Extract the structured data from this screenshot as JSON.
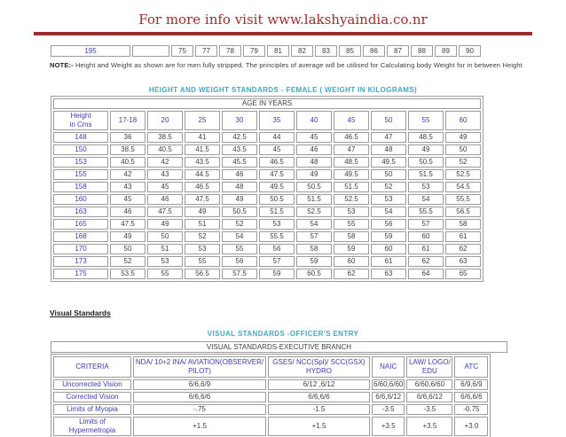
{
  "header": {
    "title": "For more info visit www.lakshyaindia.co.nr"
  },
  "weight_strip": {
    "first_cell": "195",
    "empty_cell": "",
    "values": [
      "75",
      "77",
      "78",
      "79",
      "81",
      "82",
      "83",
      "85",
      "86",
      "87",
      "88",
      "89",
      "90"
    ]
  },
  "note": {
    "label": "NOTE:-",
    "text": " Height and Weight as shown are for men fully stripped. The principles of average will be utilised for Calculating body Weight for in between Height"
  },
  "female_table": {
    "title": "HEIGHT AND WEIGHT STANDARDS - FEMALE ( WEIGHT IN KILOGRAMS)",
    "age_header": "AGE IN YEARS",
    "height_col_lines": [
      "Height",
      "in Cms"
    ],
    "age_columns": [
      "17-18",
      "20",
      "25",
      "30",
      "35",
      "40",
      "45",
      "50",
      "55",
      "60"
    ],
    "rows": [
      {
        "height": "148",
        "weights": [
          "36",
          "38.5",
          "41",
          "42.5",
          "44",
          "45",
          "46.5",
          "47",
          "48.5",
          "49"
        ]
      },
      {
        "height": "150",
        "weights": [
          "38.5",
          "40.5",
          "41.5",
          "43.5",
          "45",
          "46",
          "47",
          "48",
          "49",
          "50"
        ]
      },
      {
        "height": "153",
        "weights": [
          "40.5",
          "42",
          "43.5",
          "45.5",
          "46.5",
          "48",
          "48.5",
          "49.5",
          "50.5",
          "52"
        ]
      },
      {
        "height": "155",
        "weights": [
          "42",
          "43",
          "44.5",
          "46",
          "47.5",
          "49",
          "49.5",
          "50",
          "51.5",
          "52.5"
        ]
      },
      {
        "height": "158",
        "weights": [
          "43",
          "45",
          "46.5",
          "48",
          "49.5",
          "50.5",
          "51.5",
          "52",
          "53",
          "54.5"
        ]
      },
      {
        "height": "160",
        "weights": [
          "45",
          "46",
          "47.5",
          "49",
          "50.5",
          "51.5",
          "52.5",
          "53",
          "54",
          "55.5"
        ]
      },
      {
        "height": "163",
        "weights": [
          "46",
          "47.5",
          "49",
          "50.5",
          "51.5",
          "52.5",
          "53",
          "54",
          "55.5",
          "56.5"
        ]
      },
      {
        "height": "165",
        "weights": [
          "47.5",
          "49",
          "51",
          "52",
          "53",
          "54",
          "55",
          "56",
          "57",
          "58"
        ]
      },
      {
        "height": "168",
        "weights": [
          "49",
          "50",
          "52",
          "54",
          "55.5",
          "57",
          "58",
          "59",
          "60",
          "61"
        ]
      },
      {
        "height": "170",
        "weights": [
          "50",
          "51",
          "53",
          "55",
          "56",
          "58",
          "59",
          "60",
          "61",
          "62"
        ]
      },
      {
        "height": "173",
        "weights": [
          "52",
          "53",
          "55",
          "56",
          "57",
          "59",
          "60",
          "61",
          "62",
          "63"
        ]
      },
      {
        "height": "175",
        "weights": [
          "53.5",
          "55",
          "56.5",
          "57.5",
          "59",
          "60.5",
          "62",
          "63",
          "64",
          "65"
        ]
      }
    ]
  },
  "visual_standards": {
    "section_heading": "Visual Standards",
    "title": "VISUAL STANDARDS -OFFICER'S ENTRY",
    "subtitle": "VISUAL STANDARDS-EXECUTIVE BRANCH",
    "columns": [
      "CRITERIA",
      "NDA/ 10+2 INA/ AVIATION(OBSERVER/ PILOT)",
      "GSES/ NCC(Spl)/ SCC(GSX) HYDRO",
      "NAIC",
      "LAW/ LOGO/ EDU",
      "ATC"
    ],
    "rows": [
      {
        "label": "Uncorrected Vision",
        "values": [
          "6/6,6/9",
          "6/12 ,6/12",
          "6/60,6/60",
          "6/60,6/60",
          "6/9,6/9"
        ]
      },
      {
        "label": "Corrected Vision",
        "values": [
          "6/6,6/6",
          "6/6,6/6",
          "6/6,6/12",
          "6/6,6/12",
          "6/6,6/6"
        ]
      },
      {
        "label": "Limits of Myopia",
        "values": [
          "-.75",
          "-1.5",
          "-3.5",
          "-3.5",
          "-0.75"
        ]
      },
      {
        "label": "Limits of Hypermetropia",
        "values": [
          "+1.5",
          "+1.5",
          "+3.5",
          "+3.5",
          "+3.0"
        ]
      }
    ]
  },
  "colors": {
    "maroon": "#9b2d2d",
    "teal": "#42a7c6",
    "header_blue": "#3c3caf"
  }
}
